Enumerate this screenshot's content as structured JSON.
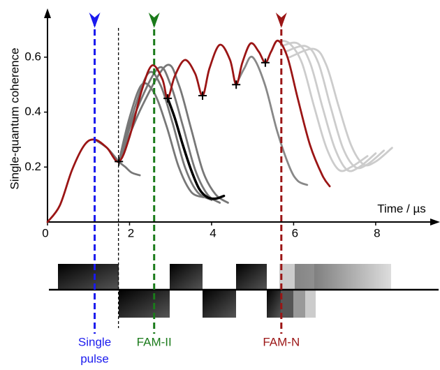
{
  "chart_data": {
    "type": "line",
    "ylabel": "Single-quantum coherence",
    "xlabel": "Time / µs",
    "xlim": [
      0,
      9.5
    ],
    "ylim": [
      0,
      0.77
    ],
    "xticks": [
      0,
      2,
      4,
      6,
      8
    ],
    "yticks": [
      0.2,
      0.4,
      0.6
    ],
    "grid": false,
    "series": [
      {
        "color": "#ccc",
        "x": [
          5.62,
          5.9,
          6.2,
          6.5,
          6.8,
          7.1,
          7.4,
          7.8
        ],
        "values": [
          0.66,
          0.65,
          0.58,
          0.42,
          0.27,
          0.19,
          0.2,
          0.24
        ]
      },
      {
        "color": "#ccc",
        "x": [
          5.7,
          6.1,
          6.4,
          6.7,
          7.0,
          7.3,
          7.6,
          8.0
        ],
        "values": [
          0.64,
          0.65,
          0.58,
          0.42,
          0.27,
          0.19,
          0.2,
          0.25
        ]
      },
      {
        "color": "#ccc",
        "x": [
          5.8,
          6.3,
          6.6,
          6.9,
          7.2,
          7.5,
          7.8,
          8.2
        ],
        "values": [
          0.62,
          0.64,
          0.58,
          0.42,
          0.27,
          0.2,
          0.21,
          0.26
        ]
      },
      {
        "color": "#ccc",
        "x": [
          5.9,
          6.5,
          6.8,
          7.1,
          7.4,
          7.7,
          8.0,
          8.4
        ],
        "values": [
          0.6,
          0.63,
          0.57,
          0.42,
          0.28,
          0.21,
          0.22,
          0.27
        ]
      },
      {
        "color": "#888",
        "x": [
          4.6,
          4.8,
          5.0,
          5.3,
          5.6,
          5.9,
          6.1,
          6.33
        ],
        "values": [
          0.5,
          0.56,
          0.6,
          0.5,
          0.33,
          0.2,
          0.15,
          0.135
        ]
      },
      {
        "color": "#777",
        "x": [
          1.15,
          1.45,
          1.74,
          1.9,
          2.05,
          2.25
        ],
        "values": [
          0.3,
          0.27,
          0.22,
          0.2,
          0.18,
          0.17
        ]
      },
      {
        "color": "#777",
        "x": [
          1.74,
          2.0,
          2.3,
          2.6,
          2.9,
          3.2,
          3.5,
          3.8
        ],
        "values": [
          0.22,
          0.38,
          0.5,
          0.47,
          0.35,
          0.2,
          0.11,
          0.09
        ]
      },
      {
        "color": "#777",
        "x": [
          1.74,
          2.05,
          2.45,
          2.75,
          3.05,
          3.35,
          3.65,
          4.0
        ],
        "values": [
          0.22,
          0.38,
          0.54,
          0.5,
          0.36,
          0.2,
          0.11,
          0.08
        ]
      },
      {
        "color": "#777",
        "x": [
          1.74,
          2.15,
          2.7,
          3.0,
          3.3,
          3.6,
          3.9,
          4.2
        ],
        "values": [
          0.22,
          0.4,
          0.56,
          0.5,
          0.35,
          0.19,
          0.1,
          0.07
        ]
      },
      {
        "color": "#777",
        "x": [
          1.74,
          2.3,
          2.9,
          3.2,
          3.5,
          3.8,
          4.1,
          4.4
        ],
        "values": [
          0.22,
          0.42,
          0.57,
          0.5,
          0.34,
          0.18,
          0.1,
          0.07
        ]
      },
      {
        "color": "#000",
        "x": [
          2.93,
          3.1,
          3.3,
          3.5,
          3.7,
          3.9,
          4.1,
          4.3
        ],
        "values": [
          0.45,
          0.38,
          0.28,
          0.19,
          0.12,
          0.09,
          0.085,
          0.095
        ]
      },
      {
        "color": "#9b1515",
        "x": [
          0,
          0.3,
          0.6,
          0.9,
          1.15,
          1.45,
          1.74,
          2.0,
          2.3,
          2.55,
          2.8,
          2.93,
          3.1,
          3.35,
          3.6,
          3.78,
          3.95,
          4.2,
          4.45,
          4.6,
          4.75,
          4.95,
          5.15,
          5.31,
          5.45,
          5.62,
          5.85,
          6.1,
          6.4,
          6.7,
          6.88
        ],
        "values": [
          0,
          0.06,
          0.19,
          0.28,
          0.3,
          0.27,
          0.22,
          0.31,
          0.48,
          0.57,
          0.52,
          0.45,
          0.53,
          0.59,
          0.54,
          0.46,
          0.56,
          0.645,
          0.59,
          0.5,
          0.58,
          0.65,
          0.62,
          0.58,
          0.62,
          0.66,
          0.6,
          0.45,
          0.28,
          0.17,
          0.13
        ]
      }
    ],
    "markers": {
      "x": [
        1.74,
        2.93,
        3.78,
        4.6,
        5.31
      ],
      "values": [
        0.22,
        0.45,
        0.46,
        0.5,
        0.58
      ]
    },
    "vlines": [
      {
        "x": 1.15,
        "color": "#1a1aee",
        "label": [
          "Single",
          "pulse"
        ]
      },
      {
        "x": 1.73,
        "color": "#000"
      },
      {
        "x": 2.6,
        "color": "#1a7a1a",
        "label": [
          "FAM-II"
        ]
      },
      {
        "x": 5.7,
        "color": "#9b1515",
        "label": [
          "FAM-N"
        ]
      }
    ]
  }
}
